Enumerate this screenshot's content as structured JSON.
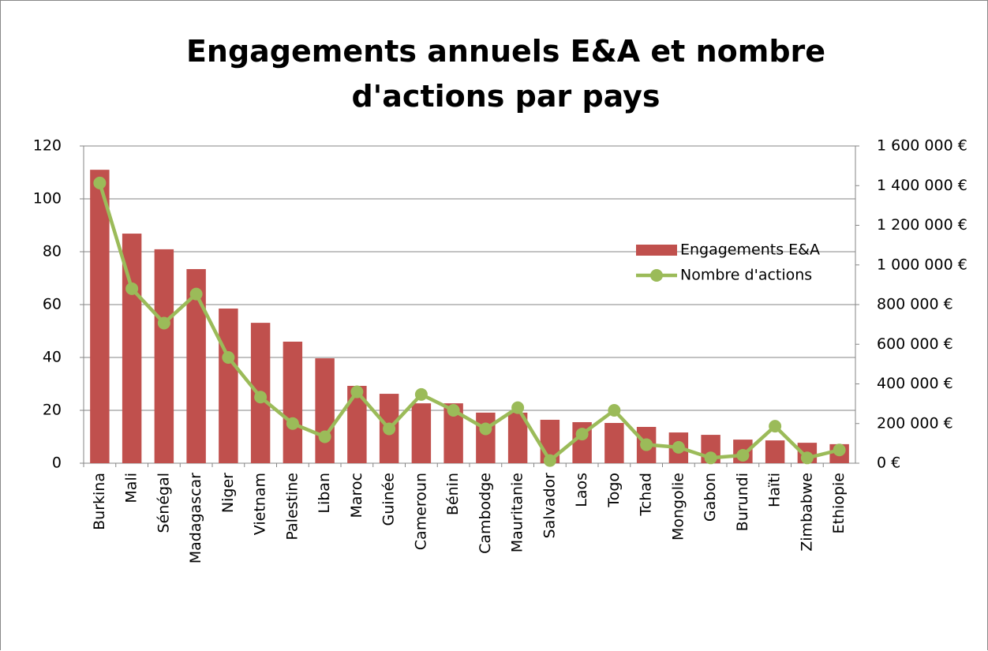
{
  "chart_data": {
    "type": "bar_line",
    "title": "Engagements annuels E&A et nombre d'actions par pays",
    "categories": [
      "Burkina",
      "Mali",
      "Sénégal",
      "Madagascar",
      "Niger",
      "Vietnam",
      "Palestine",
      "Liban",
      "Maroc",
      "Guinée",
      "Cameroun",
      "Bénin",
      "Cambodge",
      "Mauritanie",
      "Salvador",
      "Laos",
      "Togo",
      "Tchad",
      "Mongolie",
      "Gabon",
      "Burundi",
      "Haïti",
      "Zimbabwe",
      "Ethiopie"
    ],
    "series": [
      {
        "name": "Engagements E&A",
        "type": "bar",
        "axis": "y2",
        "color": "#c0504d",
        "values": [
          1480000,
          1158000,
          1079000,
          979000,
          780000,
          708000,
          613000,
          529000,
          390000,
          350000,
          302000,
          302000,
          255000,
          255000,
          219000,
          207000,
          203000,
          183000,
          155000,
          143000,
          119000,
          115000,
          103000,
          96000
        ]
      },
      {
        "name": "Nombre d'actions",
        "type": "line",
        "axis": "y",
        "color": "#9bbb59",
        "values": [
          106,
          66,
          53,
          64,
          40,
          25,
          15,
          10,
          27,
          13,
          26,
          20,
          13,
          21,
          1,
          11,
          20,
          7,
          6,
          2,
          3,
          14,
          2,
          5
        ]
      }
    ],
    "ylim": [
      0,
      120
    ],
    "yticks": [
      0,
      20,
      40,
      60,
      80,
      100,
      120
    ],
    "y2lim": [
      0,
      1600000
    ],
    "y2ticks": [
      {
        "value": 0,
        "label": "0 €"
      },
      {
        "value": 200000,
        "label": "200 000 €"
      },
      {
        "value": 400000,
        "label": "400 000 €"
      },
      {
        "value": 600000,
        "label": "600 000 €"
      },
      {
        "value": 800000,
        "label": "800 000 €"
      },
      {
        "value": 1000000,
        "label": "1 000 000 €"
      },
      {
        "value": 1200000,
        "label": "1 200 000 €"
      },
      {
        "value": 1400000,
        "label": "1 400 000 €"
      },
      {
        "value": 1600000,
        "label": "1 600 000 €"
      }
    ],
    "grid": true,
    "legend": "right"
  }
}
